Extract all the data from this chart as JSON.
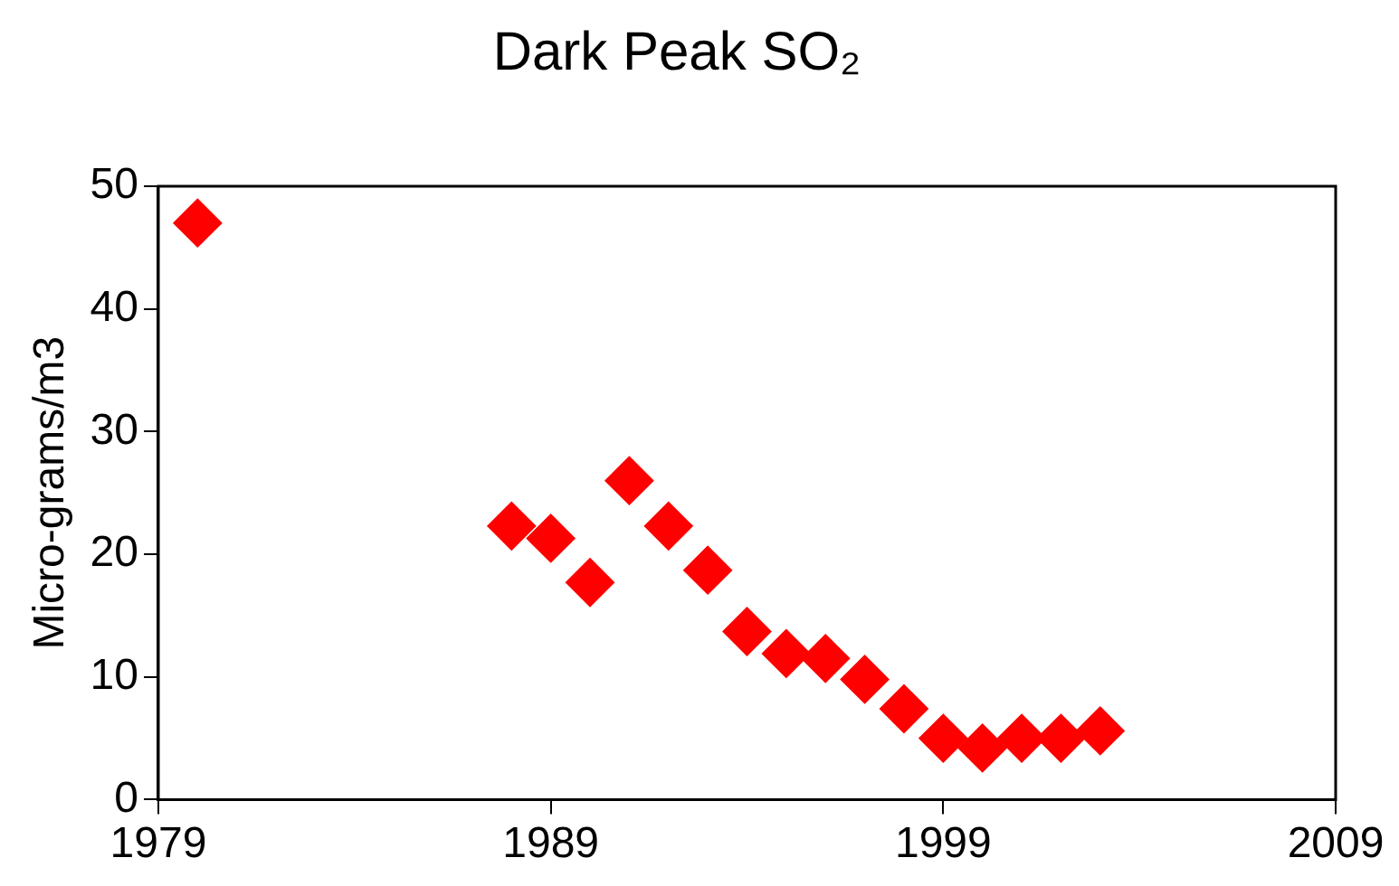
{
  "chart_data": {
    "type": "scatter",
    "title": "Dark Peak SO₂",
    "ylabel": "Micro-grams/m3",
    "x": [
      1980,
      1988,
      1989,
      1990,
      1991,
      1992,
      1993,
      1994,
      1995,
      1996,
      1997,
      1998,
      1999,
      2000,
      2001,
      2002,
      2003
    ],
    "series": [
      {
        "color": "#ff0000",
        "values": [
          47,
          22.3,
          21.3,
          17.7,
          26,
          22.3,
          18.7,
          13.7,
          11.9,
          11.5,
          9.8,
          7.4,
          5,
          4.2,
          5,
          5,
          5.6
        ]
      }
    ],
    "xlim": [
      1979,
      2009
    ],
    "xticks": [
      1979,
      1989,
      1999,
      2009
    ],
    "ylim": [
      0,
      50
    ],
    "yticks": [
      0,
      10,
      20,
      30,
      40,
      50
    ],
    "grid": false,
    "legend": false,
    "marker": "diamond"
  }
}
